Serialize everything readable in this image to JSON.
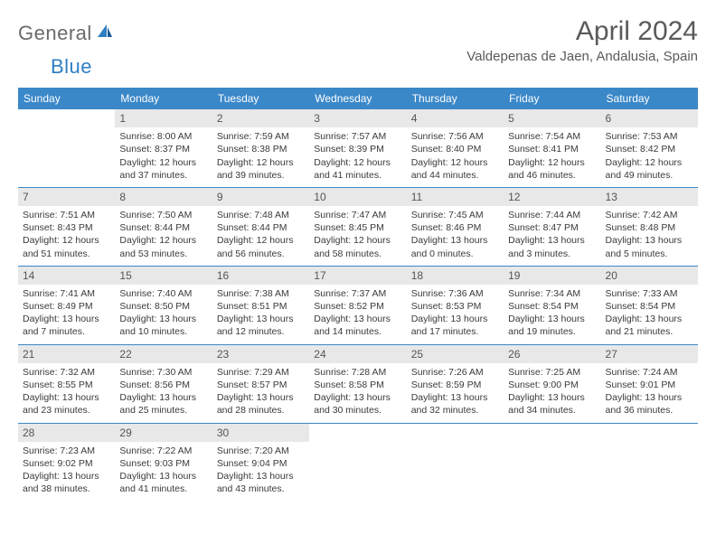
{
  "logo": {
    "word1": "General",
    "word2": "Blue"
  },
  "title": "April 2024",
  "location": "Valdepenas de Jaen, Andalusia, Spain",
  "colors": {
    "header_bg": "#3b88c9",
    "header_text": "#ffffff",
    "daynum_bg": "#e8e8e8",
    "week_border": "#3b88c9",
    "text": "#3a3a3a",
    "title_text": "#5a5a5a",
    "logo_gray": "#6a6a6a",
    "logo_blue": "#2f7ec2"
  },
  "day_headers": [
    "Sunday",
    "Monday",
    "Tuesday",
    "Wednesday",
    "Thursday",
    "Friday",
    "Saturday"
  ],
  "weeks": [
    [
      {
        "n": "",
        "lines": []
      },
      {
        "n": "1",
        "lines": [
          "Sunrise: 8:00 AM",
          "Sunset: 8:37 PM",
          "Daylight: 12 hours",
          "and 37 minutes."
        ]
      },
      {
        "n": "2",
        "lines": [
          "Sunrise: 7:59 AM",
          "Sunset: 8:38 PM",
          "Daylight: 12 hours",
          "and 39 minutes."
        ]
      },
      {
        "n": "3",
        "lines": [
          "Sunrise: 7:57 AM",
          "Sunset: 8:39 PM",
          "Daylight: 12 hours",
          "and 41 minutes."
        ]
      },
      {
        "n": "4",
        "lines": [
          "Sunrise: 7:56 AM",
          "Sunset: 8:40 PM",
          "Daylight: 12 hours",
          "and 44 minutes."
        ]
      },
      {
        "n": "5",
        "lines": [
          "Sunrise: 7:54 AM",
          "Sunset: 8:41 PM",
          "Daylight: 12 hours",
          "and 46 minutes."
        ]
      },
      {
        "n": "6",
        "lines": [
          "Sunrise: 7:53 AM",
          "Sunset: 8:42 PM",
          "Daylight: 12 hours",
          "and 49 minutes."
        ]
      }
    ],
    [
      {
        "n": "7",
        "lines": [
          "Sunrise: 7:51 AM",
          "Sunset: 8:43 PM",
          "Daylight: 12 hours",
          "and 51 minutes."
        ]
      },
      {
        "n": "8",
        "lines": [
          "Sunrise: 7:50 AM",
          "Sunset: 8:44 PM",
          "Daylight: 12 hours",
          "and 53 minutes."
        ]
      },
      {
        "n": "9",
        "lines": [
          "Sunrise: 7:48 AM",
          "Sunset: 8:44 PM",
          "Daylight: 12 hours",
          "and 56 minutes."
        ]
      },
      {
        "n": "10",
        "lines": [
          "Sunrise: 7:47 AM",
          "Sunset: 8:45 PM",
          "Daylight: 12 hours",
          "and 58 minutes."
        ]
      },
      {
        "n": "11",
        "lines": [
          "Sunrise: 7:45 AM",
          "Sunset: 8:46 PM",
          "Daylight: 13 hours",
          "and 0 minutes."
        ]
      },
      {
        "n": "12",
        "lines": [
          "Sunrise: 7:44 AM",
          "Sunset: 8:47 PM",
          "Daylight: 13 hours",
          "and 3 minutes."
        ]
      },
      {
        "n": "13",
        "lines": [
          "Sunrise: 7:42 AM",
          "Sunset: 8:48 PM",
          "Daylight: 13 hours",
          "and 5 minutes."
        ]
      }
    ],
    [
      {
        "n": "14",
        "lines": [
          "Sunrise: 7:41 AM",
          "Sunset: 8:49 PM",
          "Daylight: 13 hours",
          "and 7 minutes."
        ]
      },
      {
        "n": "15",
        "lines": [
          "Sunrise: 7:40 AM",
          "Sunset: 8:50 PM",
          "Daylight: 13 hours",
          "and 10 minutes."
        ]
      },
      {
        "n": "16",
        "lines": [
          "Sunrise: 7:38 AM",
          "Sunset: 8:51 PM",
          "Daylight: 13 hours",
          "and 12 minutes."
        ]
      },
      {
        "n": "17",
        "lines": [
          "Sunrise: 7:37 AM",
          "Sunset: 8:52 PM",
          "Daylight: 13 hours",
          "and 14 minutes."
        ]
      },
      {
        "n": "18",
        "lines": [
          "Sunrise: 7:36 AM",
          "Sunset: 8:53 PM",
          "Daylight: 13 hours",
          "and 17 minutes."
        ]
      },
      {
        "n": "19",
        "lines": [
          "Sunrise: 7:34 AM",
          "Sunset: 8:54 PM",
          "Daylight: 13 hours",
          "and 19 minutes."
        ]
      },
      {
        "n": "20",
        "lines": [
          "Sunrise: 7:33 AM",
          "Sunset: 8:54 PM",
          "Daylight: 13 hours",
          "and 21 minutes."
        ]
      }
    ],
    [
      {
        "n": "21",
        "lines": [
          "Sunrise: 7:32 AM",
          "Sunset: 8:55 PM",
          "Daylight: 13 hours",
          "and 23 minutes."
        ]
      },
      {
        "n": "22",
        "lines": [
          "Sunrise: 7:30 AM",
          "Sunset: 8:56 PM",
          "Daylight: 13 hours",
          "and 25 minutes."
        ]
      },
      {
        "n": "23",
        "lines": [
          "Sunrise: 7:29 AM",
          "Sunset: 8:57 PM",
          "Daylight: 13 hours",
          "and 28 minutes."
        ]
      },
      {
        "n": "24",
        "lines": [
          "Sunrise: 7:28 AM",
          "Sunset: 8:58 PM",
          "Daylight: 13 hours",
          "and 30 minutes."
        ]
      },
      {
        "n": "25",
        "lines": [
          "Sunrise: 7:26 AM",
          "Sunset: 8:59 PM",
          "Daylight: 13 hours",
          "and 32 minutes."
        ]
      },
      {
        "n": "26",
        "lines": [
          "Sunrise: 7:25 AM",
          "Sunset: 9:00 PM",
          "Daylight: 13 hours",
          "and 34 minutes."
        ]
      },
      {
        "n": "27",
        "lines": [
          "Sunrise: 7:24 AM",
          "Sunset: 9:01 PM",
          "Daylight: 13 hours",
          "and 36 minutes."
        ]
      }
    ],
    [
      {
        "n": "28",
        "lines": [
          "Sunrise: 7:23 AM",
          "Sunset: 9:02 PM",
          "Daylight: 13 hours",
          "and 38 minutes."
        ]
      },
      {
        "n": "29",
        "lines": [
          "Sunrise: 7:22 AM",
          "Sunset: 9:03 PM",
          "Daylight: 13 hours",
          "and 41 minutes."
        ]
      },
      {
        "n": "30",
        "lines": [
          "Sunrise: 7:20 AM",
          "Sunset: 9:04 PM",
          "Daylight: 13 hours",
          "and 43 minutes."
        ]
      },
      {
        "n": "",
        "lines": []
      },
      {
        "n": "",
        "lines": []
      },
      {
        "n": "",
        "lines": []
      },
      {
        "n": "",
        "lines": []
      }
    ]
  ]
}
